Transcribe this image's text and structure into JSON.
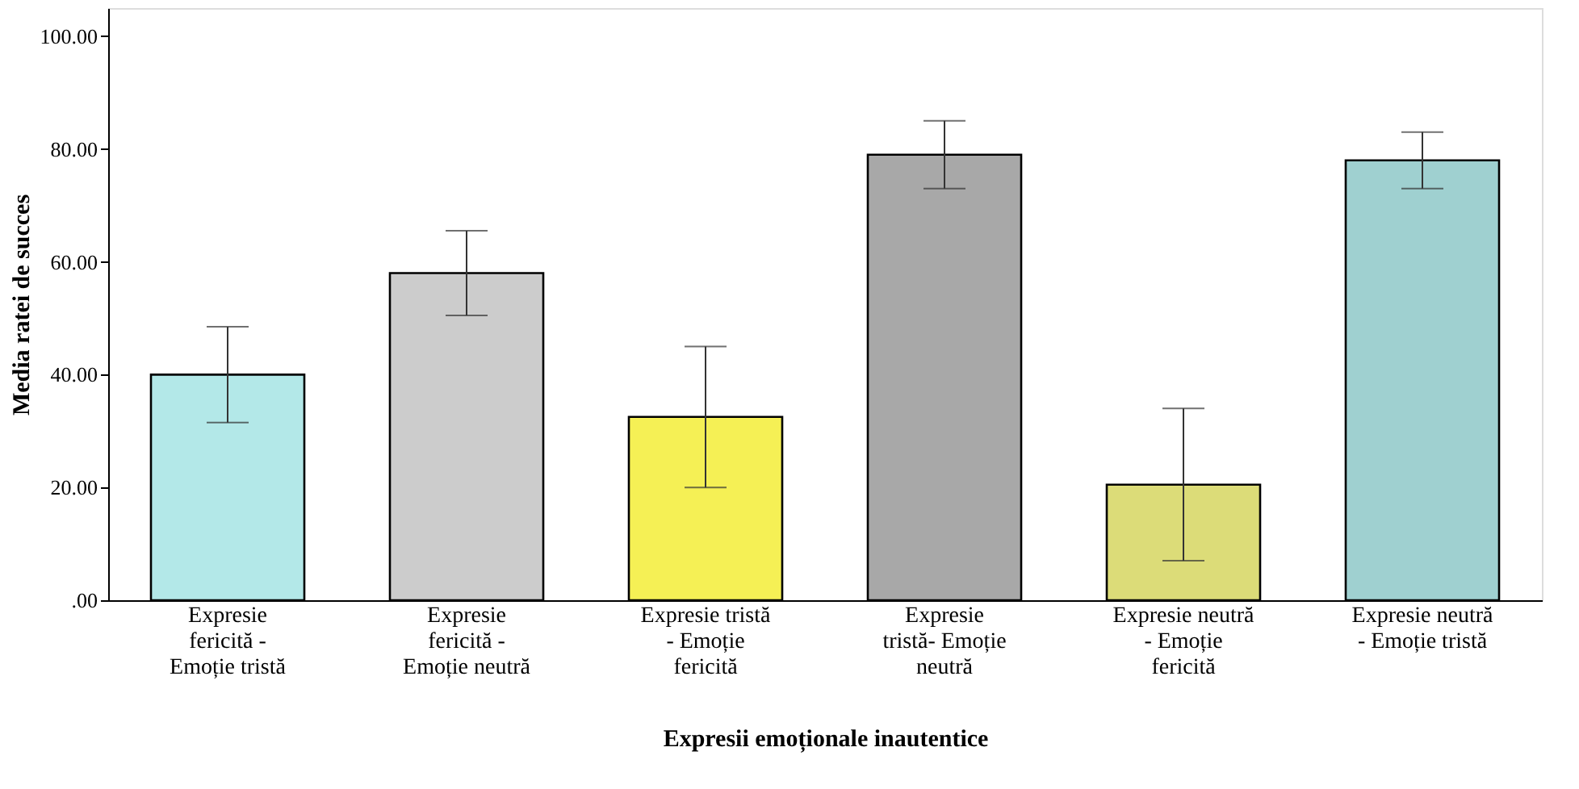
{
  "chart_data": {
    "type": "bar",
    "xlabel": "Expresii emoționale inautentice",
    "ylabel": "Media ratei de succes",
    "categories": [
      "Expresie fericită - Emoție tristă",
      "Expresie fericită - Emoție neutră",
      "Expresie tristă - Emoție fericită",
      "Expresie tristă- Emoție neutră",
      "Expresie neutră - Emoție fericită",
      "Expresie neutră - Emoție tristă"
    ],
    "values": [
      40,
      58,
      32.5,
      79,
      20.5,
      78
    ],
    "colors": [
      "#b3e8e8",
      "#cccccc",
      "#f5f055",
      "#a8a8a8",
      "#dcdc78",
      "#9fd0d0"
    ],
    "errors": [
      [
        31.5,
        48.5
      ],
      [
        50.5,
        65.5
      ],
      [
        20,
        45
      ],
      [
        73,
        85
      ],
      [
        7,
        34
      ],
      [
        73,
        83
      ]
    ],
    "ylim": [
      0,
      105
    ],
    "yticks": [
      {
        "value": 0,
        "label": ".00"
      },
      {
        "value": 20,
        "label": "20.00"
      },
      {
        "value": 40,
        "label": "40.00"
      },
      {
        "value": 60,
        "label": "60.00"
      },
      {
        "value": 80,
        "label": "80.00"
      },
      {
        "value": 100,
        "label": "100.00"
      }
    ],
    "grid": false
  }
}
